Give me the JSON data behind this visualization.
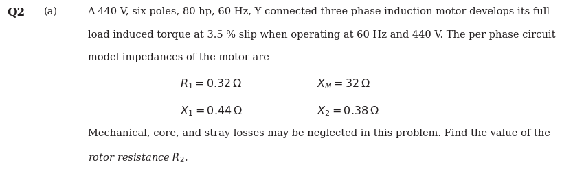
{
  "q_label": "Q2",
  "part_label": "(a)",
  "body_line1": "A 440 V, six poles, 80 hp, 60 Hz, Y connected three phase induction motor develops its full",
  "body_line2": "load induced torque at 3.5 % slip when operating at 60 Hz and 440 V. The per phase circuit",
  "body_line3": "model impedances of the motor are",
  "eq1_left": "$R_1 = 0.32\\,\\Omega$",
  "eq1_right": "$X_M = 32\\,\\Omega$",
  "eq2_left": "$X_1 = 0.44\\,\\Omega$",
  "eq2_right": "$X_2 = 0.38\\,\\Omega$",
  "footer_line1": "Mechanical, core, and stray losses may be neglected in this problem. Find the value of the",
  "footer_line2": "rotor resistance $R_2$.",
  "bg_color": "#ffffff",
  "text_color": "#231f20",
  "font_size_body": 10.5,
  "font_size_eq": 11.5,
  "font_size_qlabel": 12.0
}
